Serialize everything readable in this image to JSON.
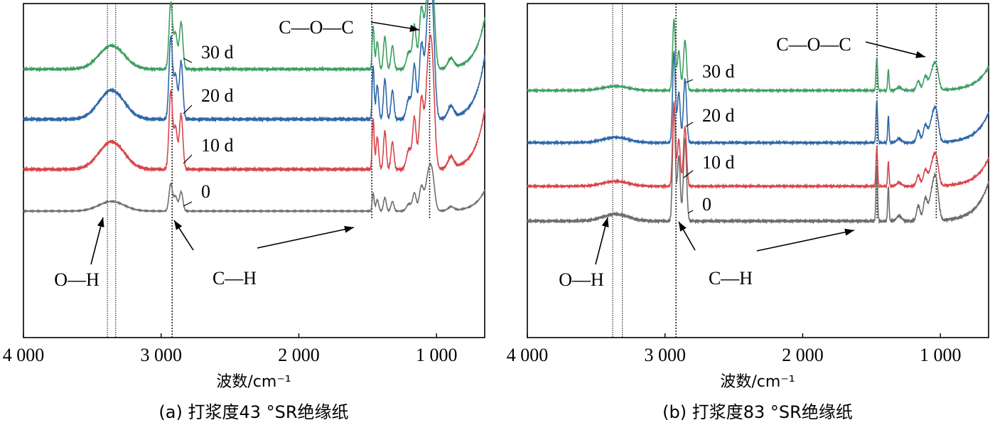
{
  "chart_data": [
    {
      "type": "line",
      "caption": "(a) 打浆度43 °SR绝缘纸",
      "xlabel": "波数/cm⁻¹",
      "xlim": [
        4000,
        650
      ],
      "xticks": [
        4000,
        3000,
        2000,
        1000
      ],
      "xtick_labels": [
        "4 000",
        "3 000",
        "2 000",
        "1 000"
      ],
      "y_visible": false,
      "colors": {
        "0": "#6e6e6e",
        "10 d": "#d9464a",
        "20 d": "#2f68a8",
        "30 d": "#3e9e63"
      },
      "series": [
        {
          "name": "0",
          "baseline": 0.0
        },
        {
          "name": "10 d",
          "baseline": 0.25
        },
        {
          "name": "20 d",
          "baseline": 0.55
        },
        {
          "name": "30 d",
          "baseline": 0.85
        }
      ],
      "reference_lines": [
        3390,
        3330,
        2920,
        1470,
        1050
      ],
      "annotations": [
        {
          "text": "O—H",
          "points_to": 3500
        },
        {
          "text": "C—H",
          "points_to": 2920
        },
        {
          "text": "C—O—C",
          "points_to": 1050
        }
      ]
    },
    {
      "type": "line",
      "caption": "(b) 打浆度83 °SR绝缘纸",
      "xlabel": "波数/cm⁻¹",
      "xlim": [
        4000,
        650
      ],
      "xticks": [
        4000,
        3000,
        2000,
        1000
      ],
      "xtick_labels": [
        "4 000",
        "3 000",
        "2 000",
        "1 000"
      ],
      "y_visible": false,
      "colors": {
        "0": "#6e6e6e",
        "10 d": "#d9464a",
        "20 d": "#2f68a8",
        "30 d": "#3e9e63"
      },
      "series": [
        {
          "name": "0",
          "baseline": 0.0
        },
        {
          "name": "10 d",
          "baseline": 0.2
        },
        {
          "name": "20 d",
          "baseline": 0.45
        },
        {
          "name": "30 d",
          "baseline": 0.75
        }
      ],
      "reference_lines": [
        3380,
        3310,
        2920,
        1460,
        1030
      ],
      "annotations": [
        {
          "text": "O—H",
          "points_to": 3430
        },
        {
          "text": "C—H",
          "points_to": 2920
        },
        {
          "text": "C—O—C",
          "points_to": 1030
        }
      ]
    }
  ]
}
